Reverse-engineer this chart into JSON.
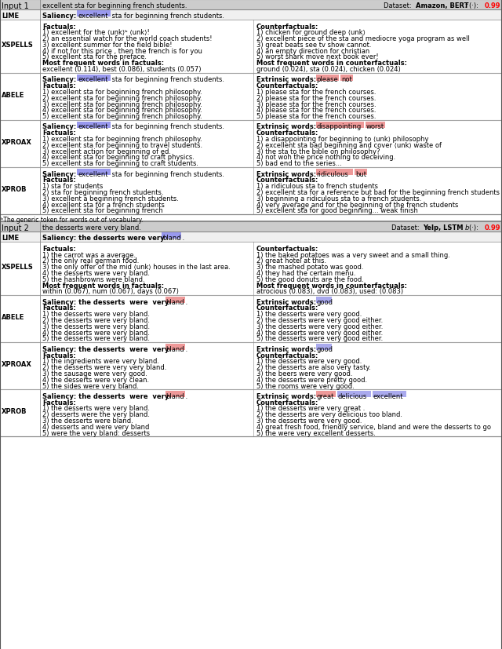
{
  "fig_width": 6.4,
  "fig_height": 8.28,
  "bg_color": "#ffffff",
  "header_bg": "#cccccc",
  "lime_bg": "#f0f0f0",
  "highlight_blue": "#9999ee",
  "highlight_pink": "#ee9999",
  "highlight_blue2": "#aaaaee",
  "input1": {
    "label": "Input 1",
    "text": "excellent sta for beginning french students.",
    "dataset_label": "Dataset: ",
    "dataset_bold": "Amazon, BERT",
    "fx_italic": "f",
    "fx_rest": "(·): ",
    "fx_val": "0.99",
    "lime_saliency_pre": "Saliency: ",
    "lime_highlight": "excellent",
    "lime_post": " sta for beginning french students.",
    "xspells": {
      "factuals_title": "Factuals:",
      "factuals": [
        "1) excellent for the ⟨unk⟩ᵇ ⟨unk⟩!",
        "2) an essential watch for the world coach students!",
        "3) excellent summer for the field bible!",
        "4) if not for this price , then the french is for you",
        "5) excellent sta for the preface."
      ],
      "most_factuals_title": "Most frequent words in factuals:",
      "most_factuals": "excellent (0.114), best (0.086), students (0.057)",
      "counterfactuals_title": "Counterfactuals:",
      "counterfactuals": [
        "1) chicken for ground deep ⟨unk⟩",
        "2) excellent piece of the sta and mediocre yoga program as well",
        "3) great beats see tv show cannot.",
        "4) an empty direction for christian",
        "5) worst shark move next book ever!"
      ],
      "most_counterfactuals_title": "Most frequent words in counterfactuals:",
      "most_counterfactuals": "ground (0.024), sta (0.024), chicken (0.024)"
    },
    "abele": {
      "sal_pre": "Saliency: ",
      "sal_hl": "excellent",
      "sal_post": " sta for beginning french students.",
      "ext_pre": "Extrinsic words: ",
      "ext_words": [
        "please",
        "not"
      ],
      "ext_colors": [
        "#ee9999",
        "#ee9999"
      ],
      "factuals_title": "Factuals:",
      "factuals": [
        "1) excellent sta for beginning french philosophy.",
        "2) excellent sta for beginning french philosophy.",
        "3) excellent sta for beginning french philosophy.",
        "4) excellent sta for beginning french philosophy.",
        "5) excellent sta for beginning french philosophy."
      ],
      "counterfactuals_title": "Counterfactuals:",
      "counterfactuals": [
        "1) please sta for the french courses.",
        "2) please sta for the french courses.",
        "3) please sta for the french courses.",
        "4) please sta for the french courses.",
        "5) please sta for the french courses."
      ]
    },
    "xproax": {
      "sal_pre": "Saliency: ",
      "sal_hl": "excellent",
      "sal_post": " sta for beginning french students.",
      "ext_pre": "Extrinsic words: ",
      "ext_words": [
        "disappointing",
        "worst"
      ],
      "ext_colors": [
        "#ee9999",
        "#ee9999"
      ],
      "factuals_title": "Factuals:",
      "factuals": [
        "1) excellent sta for beginning french philosophy.",
        "2) excellent sta for beginning to travel students.",
        "3) excellent action for beginning of ed.",
        "4) excellent sta for beginning to craft physics.",
        "5) excellent sta for beginning to craft students."
      ],
      "counterfactuals_title": "Counterfactuals:",
      "counterfactuals": [
        "1) a disappointing for beginning to ⟨unk⟩ philosophy",
        "2) excellent sta bad beginning and cover ⟨unk⟩ waste of",
        "3) the sta to the bible on philosophy?",
        "4) not woh the price nothing to deceiving.",
        "5) bad end to the series..."
      ]
    },
    "xprob": {
      "sal_pre": "Saliency: ",
      "sal_hl": "excellent",
      "sal_post": " sta for beginning french students.",
      "ext_pre": "Extrinsic words: ",
      "ext_words": [
        "ridiculous",
        "but"
      ],
      "ext_colors": [
        "#ee9999",
        "#ee9999"
      ],
      "factuals_title": "Factuals:",
      "factuals": [
        "1) sta for students",
        "2) sta for beginning french students.",
        "3) excellent a beginning french students.",
        "4) excellent sta for a french students",
        "5) excellent sta for beginning french"
      ],
      "counterfactuals_title": "Counterfactuals:",
      "counterfactuals": [
        "1) a ridiculous sta to french students",
        "2) excellent sta for a reference but bad for the beginning french students",
        "3) beginning a ridiculous sta to a french students.",
        "4) very average and for the beginning of the french students",
        "5) excellent sta for good beginning... weak finish"
      ]
    }
  },
  "footnote": "ᵇThe generic token for words out of vocabulary.",
  "input2": {
    "label": "Input 2",
    "text": "the desserts were very bland.",
    "dataset_label": "Dataset: ",
    "dataset_bold": "Yelp, LSTM",
    "fx_italic": "b",
    "fx_rest": "(·): ",
    "fx_val": "0.99",
    "lime_saliency_pre": "Saliency: the desserts were very  ",
    "lime_highlight": "bland",
    "lime_post": " .",
    "xspells": {
      "factuals_title": "Factuals:",
      "factuals": [
        "1) the carrot was a average.",
        "2) the only real german food.",
        "3) the only offer of the mid ⟨unk⟩ houses in the last area.",
        "4) the desserts were very bland.",
        "5) the hashbrowns were bland."
      ],
      "most_factuals_title": "Most frequent words in factuals:",
      "most_factuals": "within (0.067), num (0.067), days (0.067)",
      "counterfactuals_title": "Counterfactuals:",
      "counterfactuals": [
        "1) the baked potatoes was a very sweet and a small thing.",
        "2) great hotel at this.",
        "3) the mashed potato was good.",
        "4) they had the certain menu.",
        "5) the good donuts are the food."
      ],
      "most_counterfactuals_title": "Most frequent words in counterfactuals:",
      "most_counterfactuals": "atrocious (0.083), dvd (0.083), used: (0.083)"
    },
    "abele": {
      "sal_pre": "Saliency: the desserts  were  very ",
      "sal_hl": "bland",
      "sal_post": " .",
      "ext_pre": "Extrinsic words: ",
      "ext_words": [
        "good"
      ],
      "ext_colors": [
        "#aaaaee"
      ],
      "factuals_title": "Factuals:",
      "factuals": [
        "1) the desserts were very bland.",
        "2) the desserts were very bland.",
        "3) the desserts were very bland.",
        "4) the desserts were very bland.",
        "5) the desserts were very bland."
      ],
      "counterfactuals_title": "Counterfactuals:",
      "counterfactuals": [
        "1) the desserts were very good.",
        "2) the desserts were very good either.",
        "3) the desserts were very good either.",
        "4) the desserts were very good either.",
        "5) the desserts were very good either."
      ]
    },
    "xproax": {
      "sal_pre": "Saliency: the desserts  were  very ",
      "sal_hl": "bland",
      "sal_post": " .",
      "ext_pre": "Extrinsic words: ",
      "ext_words": [
        "good"
      ],
      "ext_colors": [
        "#aaaaee"
      ],
      "factuals_title": "Factuals:",
      "factuals": [
        "1) the ingredients were very bland.",
        "2) the desserts were very very bland.",
        "3) the sausage were very good.",
        "4) the desserts were very clean.",
        "5) the sides were very bland."
      ],
      "counterfactuals_title": "Counterfactuals:",
      "counterfactuals": [
        "1) the desserts were very good.",
        "2) the desserts are also very tasty.",
        "3) the beers were very good.",
        "4) the desserts were pretty good.",
        "5) the rooms were very good."
      ]
    },
    "xprob": {
      "sal_pre": "Saliency: the desserts  were  very ",
      "sal_hl": "bland",
      "sal_post": " .",
      "ext_pre": "Extrinsic words: ",
      "ext_words": [
        "great",
        "delicious",
        "excellent"
      ],
      "ext_colors": [
        "#ee9999",
        "#aaaaee",
        "#aaaaee"
      ],
      "factuals_title": "Factuals:",
      "factuals": [
        "1) the desserts were very bland.",
        "2) desserts were the very bland.",
        "3) the desserts were bland.",
        "4) desserts and were very bland",
        "5) were the very bland: desserts"
      ],
      "counterfactuals_title": "Counterfactuals:",
      "counterfactuals": [
        "1) the desserts were very great .",
        "2) the desserts are very delicious too bland.",
        "3) the desserts were very good.",
        "4) great fresh food, friendly service, bland and were the desserts to go",
        "5) the were very excellent desserts."
      ]
    }
  }
}
